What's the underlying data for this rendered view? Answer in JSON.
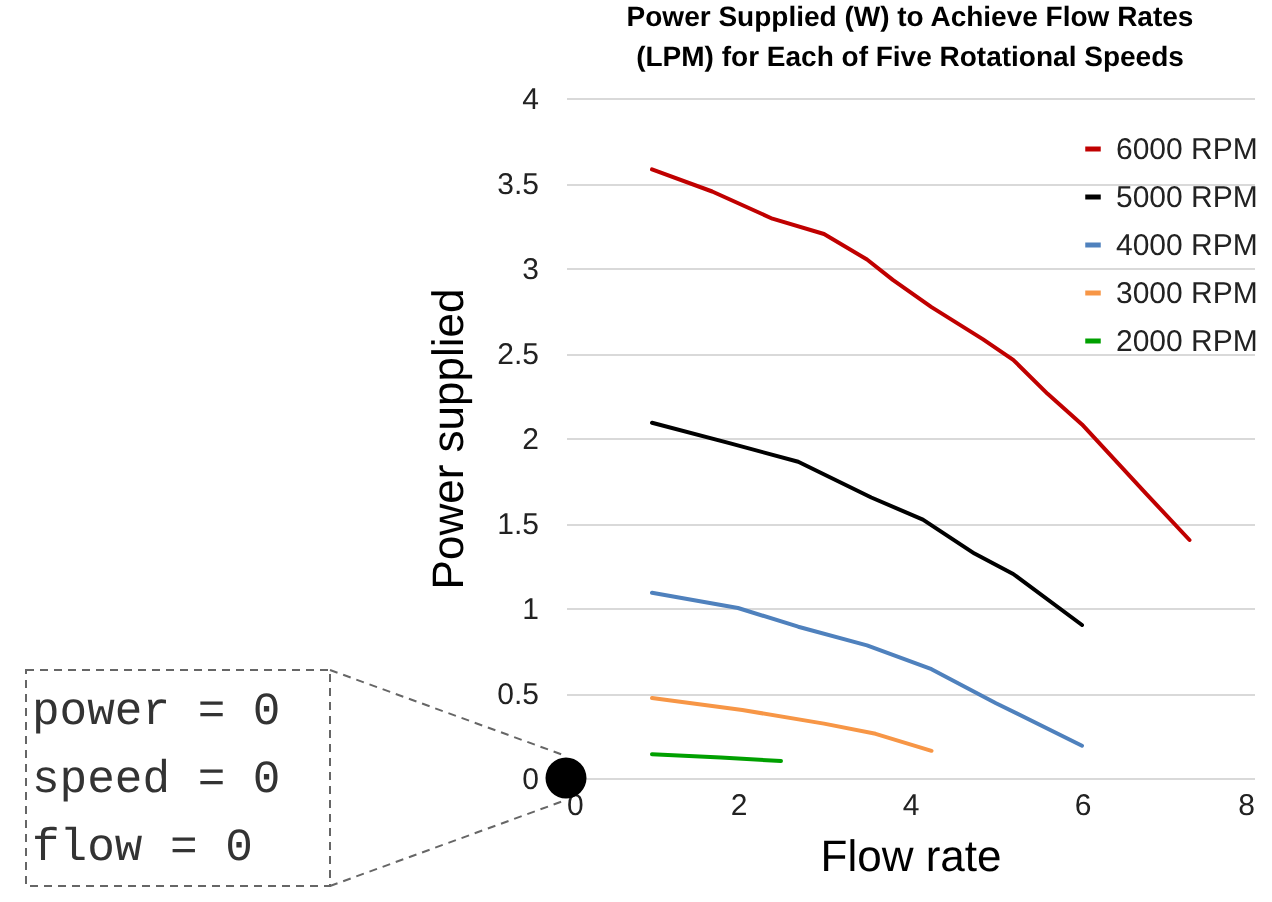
{
  "chart_data": {
    "type": "line",
    "title": [
      "Power Supplied (W) to Achieve Flow Rates",
      "(LPM) for Each of Five Rotational Speeds"
    ],
    "xlabel": "Flow rate",
    "ylabel": "Power supplied",
    "xlim": [
      0,
      8
    ],
    "xticks": [
      0,
      2,
      4,
      6,
      8
    ],
    "ylim": [
      0,
      4
    ],
    "yticks": [
      0,
      0.5,
      1,
      1.5,
      2,
      2.5,
      3,
      3.5,
      4
    ],
    "grid": "y",
    "legend": "top right",
    "line_style": "solid",
    "marker": "none",
    "series": [
      {
        "name": "6000 RPM",
        "color": "#c00000",
        "x": [
          1,
          1.7,
          2.4,
          3,
          3.5,
          3.8,
          4.25,
          4.85,
          5.2,
          5.6,
          6,
          6.75,
          7.25
        ],
        "values": [
          3.58,
          3.45,
          3.29,
          3.2,
          3.05,
          2.93,
          2.77,
          2.58,
          2.46,
          2.26,
          2.08,
          1.67,
          1.4
        ]
      },
      {
        "name": "5000 RPM",
        "color": "#000000",
        "x": [
          1,
          1.9,
          2.7,
          3.55,
          4.15,
          4.75,
          5.2,
          6
        ],
        "values": [
          2.09,
          1.97,
          1.86,
          1.65,
          1.52,
          1.32,
          1.2,
          0.9
        ]
      },
      {
        "name": "4000 RPM",
        "color": "#4f81bd",
        "x": [
          1,
          2,
          2.7,
          3.5,
          4.25,
          5,
          6
        ],
        "values": [
          1.09,
          1.0,
          0.89,
          0.78,
          0.64,
          0.44,
          0.19
        ]
      },
      {
        "name": "3000 RPM",
        "color": "#f79646",
        "x": [
          1,
          2.05,
          3,
          3.6,
          4.25
        ],
        "values": [
          0.47,
          0.4,
          0.32,
          0.26,
          0.16
        ]
      },
      {
        "name": "2000 RPM",
        "color": "#00a000",
        "x": [
          1,
          1.8,
          2.5
        ],
        "values": [
          0.14,
          0.12,
          0.1
        ]
      },
      {
        "type": "scatter",
        "marker": "circle",
        "color": "#000000",
        "x": [
          0
        ],
        "values": [
          0
        ]
      }
    ],
    "annotations": [
      "power = 0\nspeed = 0\nflow  = 0"
    ]
  }
}
